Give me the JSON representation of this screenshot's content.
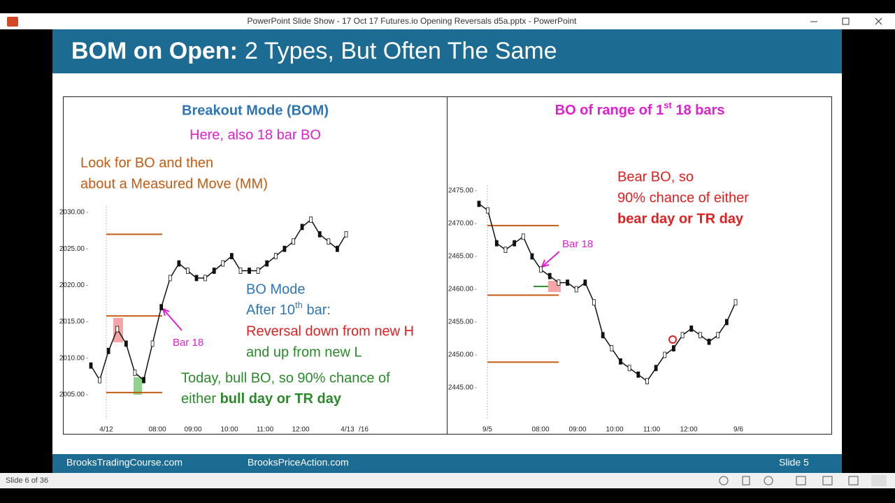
{
  "window": {
    "title": "PowerPoint Slide Show  -  17 Oct 17 Futures.io Opening Reversals d5a.pptx - PowerPoint"
  },
  "slide": {
    "title": {
      "bold": "BOM on Open:",
      "rest": "2 Types, But Often The Same"
    },
    "left": {
      "heading": "Breakout Mode (BOM)",
      "subheading": "Here, also 18 bar BO",
      "note": [
        "Look for BO and then",
        "about a Measured Move (MM)"
      ],
      "bo_mode": {
        "line1": "BO Mode",
        "line2": [
          "After 10",
          "th",
          " bar:"
        ],
        "line3": "Reversal down from new H",
        "line4": "and up from new L"
      },
      "today": {
        "line1": "Today, bull BO, so 90% chance of",
        "line2_a": "either ",
        "line2_b": "bull day or TR day"
      },
      "bar_label": "Bar 18",
      "chart": {
        "type": "line",
        "color": "#111111",
        "ylim": [
          2005,
          2030
        ],
        "yticks": [
          {
            "value": 2005,
            "label": "2005.00"
          },
          {
            "value": 2010,
            "label": "2010.00"
          },
          {
            "value": 2015,
            "label": "2015.00"
          },
          {
            "value": 2020,
            "label": "2020.00"
          },
          {
            "value": 2025,
            "label": "2025.00"
          },
          {
            "value": 2030,
            "label": "2030.00"
          }
        ],
        "x_labels": [
          "4/12",
          "08:00",
          "09:00",
          "10:00",
          "11:00",
          "12:00",
          "4/13",
          "/16"
        ],
        "values": [
          2009,
          2007,
          2011,
          2014,
          2012,
          2008,
          2007,
          2012,
          2017,
          2021,
          2023,
          2022,
          2021,
          2021,
          2022,
          2023,
          2024,
          2022,
          2022,
          2022,
          2023,
          2024,
          2025,
          2026,
          2028,
          2029,
          2027,
          2026,
          2025,
          2027
        ],
        "levels": [
          2027,
          2015.8,
          2005.3
        ],
        "level_color": "#c55a11"
      }
    },
    "right": {
      "heading": [
        "BO of range of 1",
        "st",
        " 18 bars"
      ],
      "bear": {
        "line1": "Bear BO, so",
        "line2": "90% chance of either",
        "line3": "bear day or TR day"
      },
      "bar_label": "Bar 18",
      "chart": {
        "type": "line",
        "color": "#111111",
        "ylim": [
          2445,
          2475
        ],
        "yticks": [
          {
            "value": 2445,
            "label": "2445.00"
          },
          {
            "value": 2450,
            "label": "2450.00"
          },
          {
            "value": 2455,
            "label": "2455.00"
          },
          {
            "value": 2460,
            "label": "2460.00"
          },
          {
            "value": 2465,
            "label": "2465.00"
          },
          {
            "value": 2470,
            "label": "2470.00"
          },
          {
            "value": 2475,
            "label": "2475.00"
          }
        ],
        "x_labels": [
          "9/5",
          "08:00",
          "09:00",
          "10:00",
          "11:00",
          "12:00",
          "9/6"
        ],
        "values": [
          2473,
          2472,
          2467,
          2466,
          2467,
          2468,
          2465,
          2463,
          2462,
          2461,
          2461,
          2460,
          2461,
          2458,
          2453,
          2451,
          2449,
          2448,
          2447,
          2446,
          2448,
          2450,
          2451,
          2453,
          2454,
          2453,
          2452,
          2453,
          2455,
          2458
        ],
        "levels": [
          2469.7,
          2459.1,
          2448.9
        ],
        "level_color": "#c55a11"
      }
    }
  },
  "footer": {
    "left": "BrooksTradingCourse.com",
    "center": "BrooksPriceAction.com",
    "right": "Slide  5"
  },
  "status": {
    "slide_count": "Slide 6 of 36"
  }
}
